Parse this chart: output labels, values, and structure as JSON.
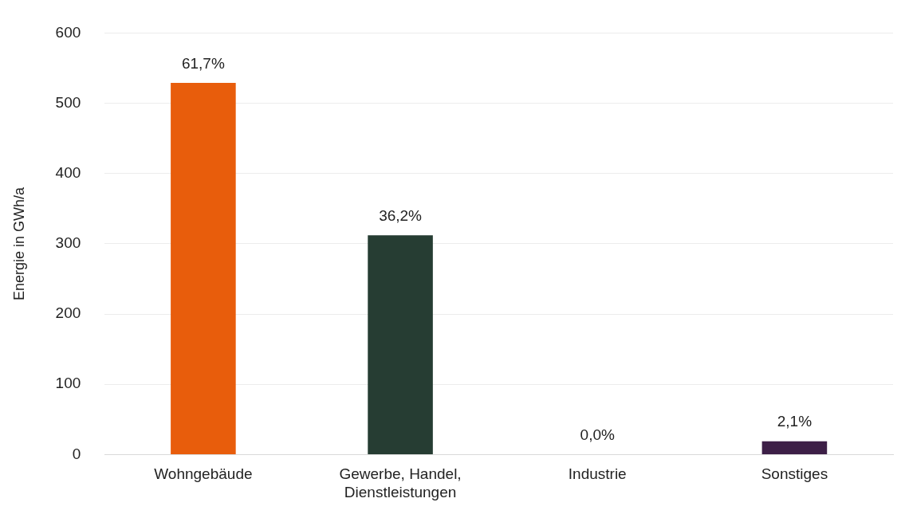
{
  "chart_data": {
    "type": "bar",
    "ylabel": "Energie in GWh/a",
    "categories": [
      "Wohngebäude",
      "Gewerbe, Handel, Dienstleistungen",
      "Industrie",
      "Sonstiges"
    ],
    "values": [
      529,
      312,
      0,
      19
    ],
    "colors": [
      "#e85d0c",
      "#263d33",
      "#3d1f47",
      "#3d1f47"
    ],
    "annotations": [
      {
        "text": "61,7%",
        "x": "Wohngebäude",
        "y": 529
      },
      {
        "text": "36,2%",
        "x": "Gewerbe, Handel, Dienstleistungen",
        "y": 312
      },
      {
        "text": "0,0%",
        "x": "Industrie",
        "y": 0
      },
      {
        "text": "2,1%",
        "x": "Sonstiges",
        "y": 19
      }
    ],
    "ylim": [
      0,
      600
    ],
    "yticks": [
      0,
      100,
      200,
      300,
      400,
      500,
      600
    ],
    "grid": "y",
    "legend": false
  }
}
